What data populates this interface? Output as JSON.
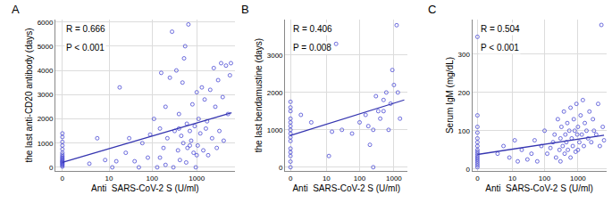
{
  "chart_data": [
    {
      "type": "scatter",
      "title": "A",
      "x_label": "Anti  SARS-CoV-2 S (U/ml)",
      "y_label": "the last anti-CD20 antibody (days)",
      "annotations": [
        "R = 0.666",
        "P < 0.001"
      ],
      "log": "x",
      "grid": true,
      "xlim": [
        -0.3,
        7000
      ],
      "xticks": [
        0,
        10,
        100,
        1000
      ],
      "ylim": [
        -150,
        6100
      ],
      "yticks": [
        0,
        1000,
        2000,
        3000,
        4000,
        5000,
        6000
      ],
      "series": [
        {
          "type": "scatter",
          "color": "#4a4ad4",
          "marker": "open_circle",
          "x": [
            0,
            0,
            0,
            0,
            0,
            0,
            0,
            0,
            0,
            0,
            0,
            0,
            0,
            0,
            0,
            0,
            0,
            0,
            3,
            5,
            8,
            12,
            15,
            18,
            25,
            30,
            40,
            50,
            60,
            80,
            90,
            110,
            130,
            150,
            160,
            180,
            200,
            220,
            250,
            280,
            300,
            320,
            350,
            380,
            400,
            420,
            450,
            480,
            500,
            520,
            550,
            580,
            600,
            620,
            650,
            700,
            750,
            800,
            850,
            900,
            950,
            1000,
            1050,
            1100,
            1200,
            1300,
            1400,
            1500,
            1600,
            1700,
            1800,
            2000,
            2200,
            2400,
            2600,
            2800,
            3000,
            3200,
            3500,
            3800,
            4000,
            4500,
            5000,
            5500,
            5800,
            200,
            400,
            700,
            1000,
            150
          ],
          "values": [
            30,
            80,
            120,
            160,
            200,
            230,
            260,
            300,
            350,
            400,
            450,
            520,
            600,
            750,
            900,
            1050,
            1250,
            1400,
            150,
            1200,
            300,
            0,
            250,
            3300,
            600,
            1200,
            250,
            0,
            1000,
            400,
            1350,
            2000,
            0,
            1600,
            3900,
            800,
            2500,
            1200,
            3700,
            5600,
            0,
            1500,
            4000,
            700,
            2200,
            300,
            1300,
            3500,
            1000,
            4500,
            5000,
            200,
            1800,
            800,
            5900,
            1500,
            1100,
            2600,
            600,
            1700,
            0,
            3100,
            900,
            2000,
            1400,
            3300,
            700,
            2800,
            1600,
            1900,
            500,
            3200,
            1200,
            4100,
            2500,
            800,
            3600,
            1500,
            4300,
            2900,
            1100,
            4200,
            2200,
            3800,
            4300,
            100,
            1600,
            900,
            500,
            400
          ]
        },
        {
          "type": "line",
          "color": "#3535b0",
          "line_style": "solid",
          "x": [
            0,
            6000
          ],
          "values": [
            200,
            2250
          ]
        }
      ]
    },
    {
      "type": "scatter",
      "title": "B",
      "x_label": "Anti  SARS-CoV-2 S (U/ml)",
      "y_label": "the last bendamustine (days)",
      "annotations": [
        "R = 0.406",
        "P = 0.008"
      ],
      "log": "x",
      "grid": true,
      "xlim": [
        -0.3,
        2500
      ],
      "xticks": [
        0,
        10,
        100,
        1000
      ],
      "ylim": [
        -100,
        3950
      ],
      "yticks": [
        0,
        1000,
        2000,
        3000
      ],
      "series": [
        {
          "type": "scatter",
          "color": "#4a4ad4",
          "marker": "open_circle",
          "x": [
            0,
            0,
            0,
            0,
            0,
            0,
            0,
            0,
            0,
            0,
            0,
            0,
            0,
            0,
            0,
            1,
            3,
            12,
            15,
            20,
            30,
            60,
            100,
            150,
            180,
            200,
            250,
            300,
            350,
            400,
            500,
            600,
            700,
            800,
            900,
            1000,
            1200,
            1300,
            1500,
            250,
            500
          ],
          "values": [
            0,
            150,
            300,
            400,
            500,
            700,
            800,
            900,
            1000,
            1100,
            1200,
            1300,
            1500,
            1600,
            1750,
            1400,
            1200,
            300,
            950,
            3300,
            1000,
            900,
            1200,
            1400,
            1100,
            600,
            0,
            1900,
            1500,
            1300,
            1800,
            2000,
            1000,
            1700,
            2600,
            2200,
            3800,
            2000,
            1300,
            1000,
            1500
          ]
        },
        {
          "type": "line",
          "color": "#3535b0",
          "line_style": "solid",
          "x": [
            0,
            2000
          ],
          "values": [
            850,
            1800
          ]
        }
      ]
    },
    {
      "type": "scatter",
      "title": "C",
      "x_label": "Anti  SARS-CoV-2 S (U/ml)",
      "y_label": "Serum IgM (mg/dL)",
      "annotations": [
        "R = 0.504",
        "P < 0.001"
      ],
      "log": "x",
      "grid": true,
      "xlim": [
        -0.3,
        7000
      ],
      "xticks": [
        0,
        10,
        100,
        1000
      ],
      "ylim": [
        -5,
        390
      ],
      "yticks": [
        0,
        100,
        200,
        300
      ],
      "series": [
        {
          "type": "scatter",
          "color": "#4a4ad4",
          "marker": "open_circle",
          "x": [
            0,
            0,
            0,
            0,
            0,
            0,
            0,
            0,
            0,
            0,
            0,
            0,
            0,
            0,
            0,
            0,
            0,
            3,
            5,
            8,
            12,
            15,
            20,
            30,
            40,
            50,
            60,
            80,
            100,
            120,
            150,
            180,
            200,
            220,
            250,
            280,
            300,
            320,
            350,
            380,
            400,
            420,
            450,
            480,
            500,
            550,
            600,
            650,
            700,
            750,
            800,
            850,
            900,
            950,
            1000,
            1100,
            1200,
            1300,
            1400,
            1500,
            1600,
            1800,
            2000,
            2200,
            2500,
            2800,
            3000,
            3500,
            4000,
            4500,
            5000,
            5500,
            6000,
            300,
            600,
            1000
          ],
          "values": [
            5,
            10,
            15,
            20,
            25,
            30,
            35,
            40,
            45,
            50,
            60,
            70,
            80,
            95,
            110,
            140,
            345,
            40,
            60,
            30,
            75,
            20,
            50,
            25,
            40,
            75,
            20,
            60,
            100,
            40,
            55,
            70,
            90,
            30,
            130,
            50,
            80,
            110,
            60,
            150,
            40,
            90,
            70,
            120,
            50,
            100,
            160,
            80,
            60,
            130,
            100,
            45,
            170,
            90,
            110,
            70,
            140,
            90,
            180,
            60,
            120,
            100,
            80,
            150,
            70,
            130,
            100,
            90,
            170,
            60,
            376,
            110,
            75,
            20,
            30,
            50
          ]
        },
        {
          "type": "line",
          "color": "#3535b0",
          "line_style": "solid",
          "x": [
            0,
            6000
          ],
          "values": [
            38,
            88
          ]
        }
      ]
    }
  ]
}
